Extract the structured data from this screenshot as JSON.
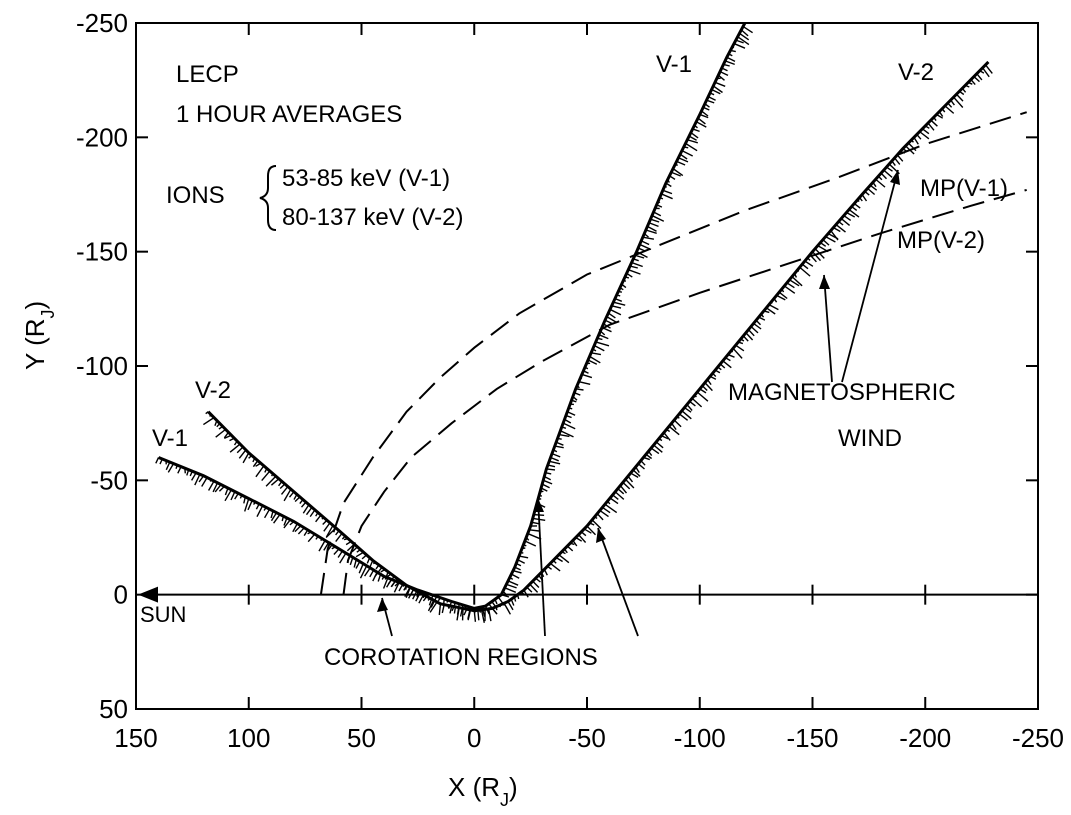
{
  "chart_data": {
    "type": "line",
    "xlabel": "X (R",
    "xlabel_sub": "J",
    "xlabel_close": ")",
    "ylabel": "Y (R",
    "ylabel_sub": "J",
    "ylabel_close": ")",
    "xlim": [
      150,
      -250
    ],
    "ylim": [
      50,
      -250
    ],
    "x_ticks": [
      150,
      100,
      50,
      0,
      -50,
      -100,
      -150,
      -200,
      -250
    ],
    "y_ticks": [
      50,
      0,
      -50,
      -100,
      -150,
      -200,
      -250
    ],
    "grid": false,
    "info": {
      "line1": "LECP",
      "line2": "1 HOUR AVERAGES",
      "ions": "IONS",
      "range1": "53-85 keV (V-1)",
      "range2": "80-137 keV (V-2)"
    },
    "sun_label": "SUN",
    "series": [
      {
        "name": "V-1",
        "points": [
          [
            140,
            -60
          ],
          [
            120,
            -52
          ],
          [
            100,
            -42
          ],
          [
            80,
            -32
          ],
          [
            60,
            -20
          ],
          [
            40,
            -8
          ],
          [
            25,
            -2
          ],
          [
            10,
            3
          ],
          [
            0,
            6
          ],
          [
            -5,
            5
          ],
          [
            -12,
            0
          ],
          [
            -18,
            -12
          ],
          [
            -25,
            -30
          ],
          [
            -32,
            -55
          ],
          [
            -45,
            -90
          ],
          [
            -58,
            -120
          ],
          [
            -72,
            -150
          ],
          [
            -85,
            -180
          ],
          [
            -100,
            -210
          ],
          [
            -112,
            -235
          ],
          [
            -120,
            -250
          ]
        ],
        "label": "V-1"
      },
      {
        "name": "V-2",
        "points": [
          [
            118,
            -80
          ],
          [
            100,
            -62
          ],
          [
            80,
            -45
          ],
          [
            60,
            -28
          ],
          [
            45,
            -15
          ],
          [
            30,
            -4
          ],
          [
            15,
            4
          ],
          [
            0,
            7
          ],
          [
            -8,
            6
          ],
          [
            -15,
            3
          ],
          [
            -22,
            -2
          ],
          [
            -35,
            -15
          ],
          [
            -50,
            -30
          ],
          [
            -75,
            -60
          ],
          [
            -100,
            -90
          ],
          [
            -125,
            -120
          ],
          [
            -150,
            -150
          ],
          [
            -172,
            -175
          ],
          [
            -190,
            -195
          ],
          [
            -210,
            -215
          ],
          [
            -228,
            -233
          ]
        ],
        "label": "V-2"
      }
    ],
    "magnetopause": [
      {
        "label": "MP(V-1)",
        "points": [
          [
            68,
            0
          ],
          [
            65,
            -20
          ],
          [
            58,
            -40
          ],
          [
            45,
            -60
          ],
          [
            30,
            -80
          ],
          [
            15,
            -95
          ],
          [
            0,
            -108
          ],
          [
            -20,
            -123
          ],
          [
            -50,
            -140
          ],
          [
            -80,
            -152
          ],
          [
            -120,
            -168
          ],
          [
            -160,
            -182
          ],
          [
            -200,
            -197
          ],
          [
            -245,
            -211
          ]
        ]
      },
      {
        "label": "MP(V-2)",
        "points": [
          [
            58,
            0
          ],
          [
            56,
            -15
          ],
          [
            50,
            -30
          ],
          [
            40,
            -45
          ],
          [
            28,
            -60
          ],
          [
            10,
            -75
          ],
          [
            -10,
            -90
          ],
          [
            -30,
            -102
          ],
          [
            -60,
            -118
          ],
          [
            -100,
            -132
          ],
          [
            -140,
            -145
          ],
          [
            -180,
            -158
          ],
          [
            -220,
            -170
          ],
          [
            -245,
            -177
          ]
        ]
      }
    ],
    "annotations": {
      "corotation": "COROTATION REGIONS",
      "wind_line1": "MAGNETOSPHERIC",
      "wind_line2": "WIND"
    }
  }
}
